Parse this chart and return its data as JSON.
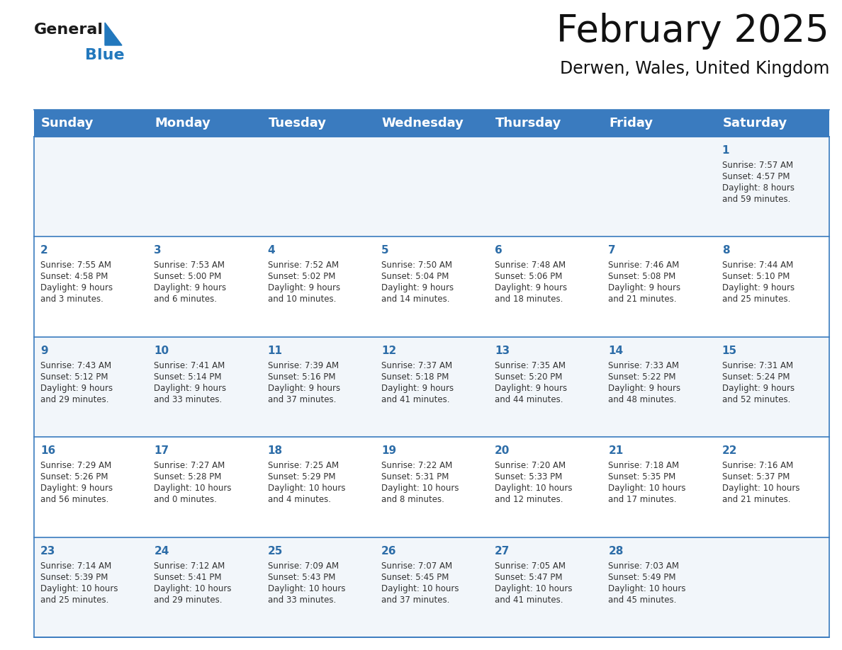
{
  "title": "February 2025",
  "subtitle": "Derwen, Wales, United Kingdom",
  "header_bg": "#3a7bbf",
  "header_text": "#ffffff",
  "cell_bg_row0": "#f2f6fa",
  "cell_bg_row1": "#ffffff",
  "cell_bg_row2": "#f2f6fa",
  "cell_bg_row3": "#ffffff",
  "cell_bg_row4": "#f2f6fa",
  "day_names": [
    "Sunday",
    "Monday",
    "Tuesday",
    "Wednesday",
    "Thursday",
    "Friday",
    "Saturday"
  ],
  "title_fontsize": 38,
  "subtitle_fontsize": 17,
  "header_fontsize": 13,
  "cell_day_fontsize": 11,
  "cell_info_fontsize": 8.5,
  "logo_general_color": "#1a1a1a",
  "logo_blue_color": "#2278bd",
  "border_color": "#3a7bbf",
  "text_color": "#333333",
  "day_number_color": "#2d6da8",
  "calendar_data": [
    [
      null,
      null,
      null,
      null,
      null,
      null,
      {
        "day": 1,
        "sunrise": "7:57 AM",
        "sunset": "4:57 PM",
        "daylight_hours": "8",
        "daylight_mins": "59"
      }
    ],
    [
      {
        "day": 2,
        "sunrise": "7:55 AM",
        "sunset": "4:58 PM",
        "daylight_hours": "9",
        "daylight_mins": "3"
      },
      {
        "day": 3,
        "sunrise": "7:53 AM",
        "sunset": "5:00 PM",
        "daylight_hours": "9",
        "daylight_mins": "6"
      },
      {
        "day": 4,
        "sunrise": "7:52 AM",
        "sunset": "5:02 PM",
        "daylight_hours": "9",
        "daylight_mins": "10"
      },
      {
        "day": 5,
        "sunrise": "7:50 AM",
        "sunset": "5:04 PM",
        "daylight_hours": "9",
        "daylight_mins": "14"
      },
      {
        "day": 6,
        "sunrise": "7:48 AM",
        "sunset": "5:06 PM",
        "daylight_hours": "9",
        "daylight_mins": "18"
      },
      {
        "day": 7,
        "sunrise": "7:46 AM",
        "sunset": "5:08 PM",
        "daylight_hours": "9",
        "daylight_mins": "21"
      },
      {
        "day": 8,
        "sunrise": "7:44 AM",
        "sunset": "5:10 PM",
        "daylight_hours": "9",
        "daylight_mins": "25"
      }
    ],
    [
      {
        "day": 9,
        "sunrise": "7:43 AM",
        "sunset": "5:12 PM",
        "daylight_hours": "9",
        "daylight_mins": "29"
      },
      {
        "day": 10,
        "sunrise": "7:41 AM",
        "sunset": "5:14 PM",
        "daylight_hours": "9",
        "daylight_mins": "33"
      },
      {
        "day": 11,
        "sunrise": "7:39 AM",
        "sunset": "5:16 PM",
        "daylight_hours": "9",
        "daylight_mins": "37"
      },
      {
        "day": 12,
        "sunrise": "7:37 AM",
        "sunset": "5:18 PM",
        "daylight_hours": "9",
        "daylight_mins": "41"
      },
      {
        "day": 13,
        "sunrise": "7:35 AM",
        "sunset": "5:20 PM",
        "daylight_hours": "9",
        "daylight_mins": "44"
      },
      {
        "day": 14,
        "sunrise": "7:33 AM",
        "sunset": "5:22 PM",
        "daylight_hours": "9",
        "daylight_mins": "48"
      },
      {
        "day": 15,
        "sunrise": "7:31 AM",
        "sunset": "5:24 PM",
        "daylight_hours": "9",
        "daylight_mins": "52"
      }
    ],
    [
      {
        "day": 16,
        "sunrise": "7:29 AM",
        "sunset": "5:26 PM",
        "daylight_hours": "9",
        "daylight_mins": "56"
      },
      {
        "day": 17,
        "sunrise": "7:27 AM",
        "sunset": "5:28 PM",
        "daylight_hours": "10",
        "daylight_mins": "0"
      },
      {
        "day": 18,
        "sunrise": "7:25 AM",
        "sunset": "5:29 PM",
        "daylight_hours": "10",
        "daylight_mins": "4"
      },
      {
        "day": 19,
        "sunrise": "7:22 AM",
        "sunset": "5:31 PM",
        "daylight_hours": "10",
        "daylight_mins": "8"
      },
      {
        "day": 20,
        "sunrise": "7:20 AM",
        "sunset": "5:33 PM",
        "daylight_hours": "10",
        "daylight_mins": "12"
      },
      {
        "day": 21,
        "sunrise": "7:18 AM",
        "sunset": "5:35 PM",
        "daylight_hours": "10",
        "daylight_mins": "17"
      },
      {
        "day": 22,
        "sunrise": "7:16 AM",
        "sunset": "5:37 PM",
        "daylight_hours": "10",
        "daylight_mins": "21"
      }
    ],
    [
      {
        "day": 23,
        "sunrise": "7:14 AM",
        "sunset": "5:39 PM",
        "daylight_hours": "10",
        "daylight_mins": "25"
      },
      {
        "day": 24,
        "sunrise": "7:12 AM",
        "sunset": "5:41 PM",
        "daylight_hours": "10",
        "daylight_mins": "29"
      },
      {
        "day": 25,
        "sunrise": "7:09 AM",
        "sunset": "5:43 PM",
        "daylight_hours": "10",
        "daylight_mins": "33"
      },
      {
        "day": 26,
        "sunrise": "7:07 AM",
        "sunset": "5:45 PM",
        "daylight_hours": "10",
        "daylight_mins": "37"
      },
      {
        "day": 27,
        "sunrise": "7:05 AM",
        "sunset": "5:47 PM",
        "daylight_hours": "10",
        "daylight_mins": "41"
      },
      {
        "day": 28,
        "sunrise": "7:03 AM",
        "sunset": "5:49 PM",
        "daylight_hours": "10",
        "daylight_mins": "45"
      },
      null
    ]
  ]
}
